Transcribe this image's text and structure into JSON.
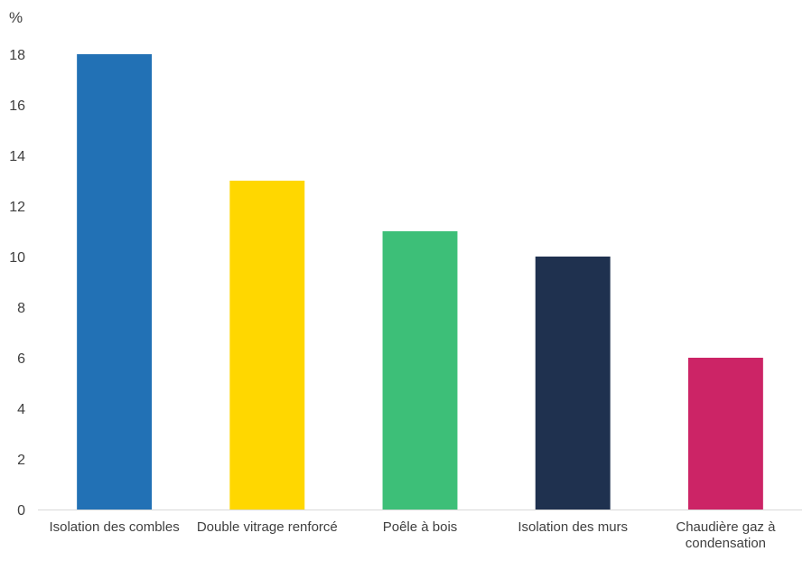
{
  "chart_data": {
    "type": "bar",
    "ylabel": "%",
    "ylim": [
      0,
      18
    ],
    "yticks": [
      0,
      2,
      4,
      6,
      8,
      10,
      12,
      14,
      16,
      18
    ],
    "grid": false,
    "legend": "none",
    "categories": [
      "Isolation des combles",
      "Double vitrage renforcé",
      "Poêle à bois",
      "Isolation des murs",
      "Chaudière gaz à condensation"
    ],
    "category_lines": [
      [
        "Isolation des combles"
      ],
      [
        "Double vitrage renforcé"
      ],
      [
        "Poêle à bois"
      ],
      [
        "Isolation des murs"
      ],
      [
        "Chaudière gaz à",
        "condensation"
      ]
    ],
    "values": [
      18,
      13,
      11,
      10,
      6
    ],
    "colors": [
      "#2271b5",
      "#ffd700",
      "#3dbf78",
      "#1f314f",
      "#cc2466"
    ]
  }
}
